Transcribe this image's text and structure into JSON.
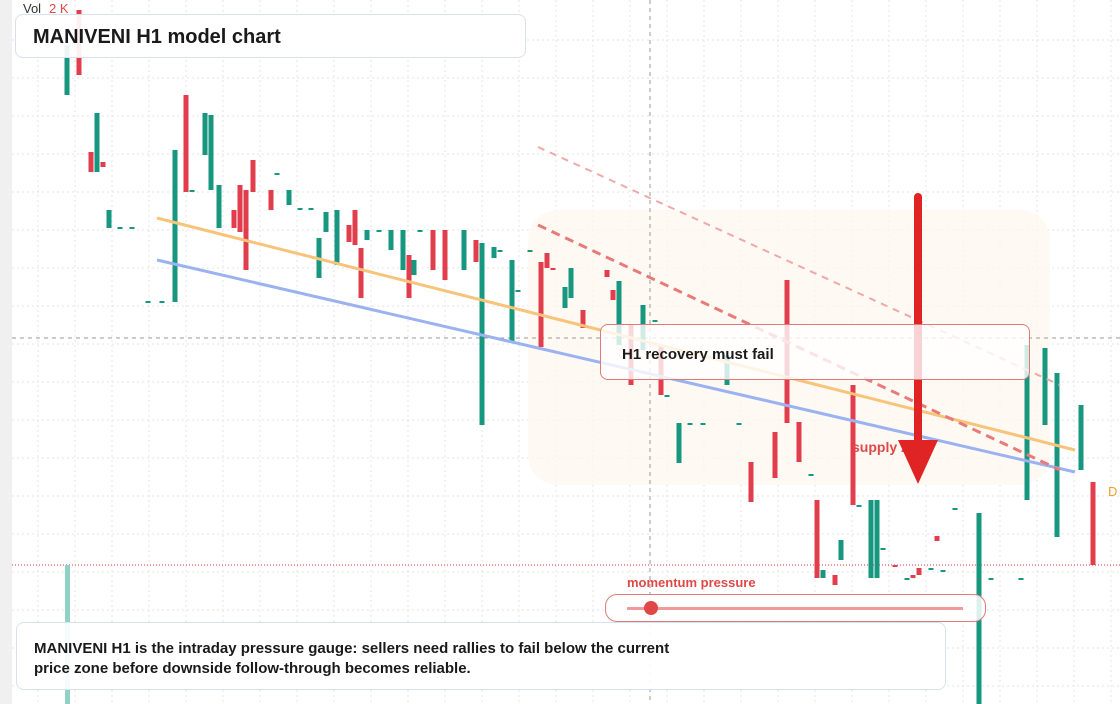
{
  "volume": {
    "label": "Vol",
    "value_text": "2 K"
  },
  "title": "MANIVENI H1 model chart",
  "callout": "H1 recovery must fail",
  "zone_label": "supply zone",
  "edge_label": "D",
  "gauge": {
    "label": "momentum pressure"
  },
  "description": "MANIVENI H1 is the intraday pressure gauge: sellers need rallies to fail below the current price zone before downside follow-through becomes reliable."
}
